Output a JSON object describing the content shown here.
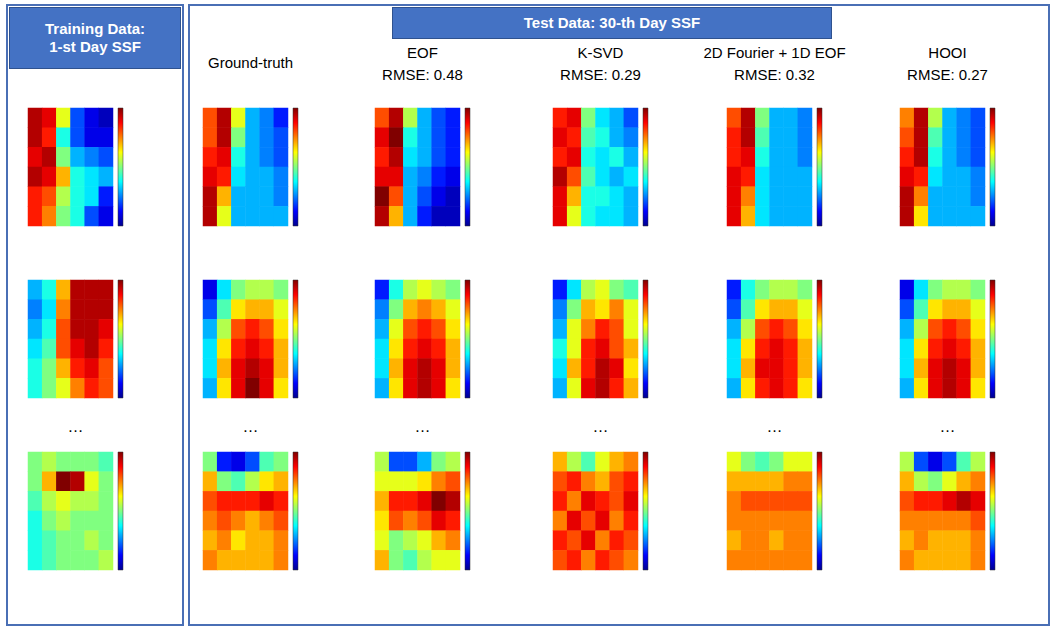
{
  "chart_data": {
    "type": "heatmap",
    "training_title": "Training Data: 1-st Day SSF",
    "test_title": "Test Data:  30-th Day SSF",
    "ellipsis": "…",
    "colorbar_range": [
      0,
      1
    ],
    "columns": [
      {
        "title": "Ground-truth"
      },
      {
        "title": "EOF",
        "rmse": {
          "value": 0.48,
          "label": "RMSE: 0.48"
        }
      },
      {
        "title": "K-SVD",
        "rmse": {
          "value": 0.29,
          "label": "RMSE: 0.29"
        }
      },
      {
        "title": "2D Fourier + 1D EOF",
        "rmse": {
          "value": 0.32,
          "label": "RMSE: 0.32"
        }
      },
      {
        "title": "HOOI",
        "rmse": {
          "value": 0.27,
          "label": "RMSE: 0.27"
        }
      }
    ],
    "training": [
      [
        [
          0.95,
          0.9,
          0.6,
          0.2,
          0.1,
          0.05
        ],
        [
          0.95,
          0.85,
          0.4,
          0.2,
          0.1,
          0.1
        ],
        [
          0.9,
          0.95,
          0.5,
          0.3,
          0.25,
          0.2
        ],
        [
          0.95,
          0.9,
          0.7,
          0.4,
          0.35,
          0.3
        ],
        [
          0.85,
          0.8,
          0.55,
          0.4,
          0.35,
          0.15
        ],
        [
          0.85,
          0.75,
          0.5,
          0.4,
          0.2,
          0.1
        ]
      ],
      [
        [
          0.3,
          0.4,
          0.7,
          0.95,
          0.95,
          0.95
        ],
        [
          0.25,
          0.35,
          0.75,
          0.95,
          0.95,
          0.95
        ],
        [
          0.3,
          0.4,
          0.8,
          0.95,
          0.95,
          0.9
        ],
        [
          0.35,
          0.45,
          0.8,
          0.9,
          0.95,
          0.85
        ],
        [
          0.4,
          0.5,
          0.7,
          0.85,
          0.9,
          0.8
        ],
        [
          0.4,
          0.5,
          0.6,
          0.75,
          0.85,
          0.8
        ]
      ],
      [
        [
          0.5,
          0.55,
          0.5,
          0.5,
          0.5,
          0.45
        ],
        [
          0.5,
          0.7,
          1.0,
          0.95,
          0.6,
          0.5
        ],
        [
          0.45,
          0.55,
          0.6,
          0.55,
          0.55,
          0.5
        ],
        [
          0.4,
          0.5,
          0.55,
          0.5,
          0.5,
          0.5
        ],
        [
          0.4,
          0.45,
          0.5,
          0.5,
          0.55,
          0.5
        ],
        [
          0.4,
          0.45,
          0.5,
          0.5,
          0.5,
          0.55
        ]
      ]
    ],
    "test": [
      [
        [
          [
            0.8,
            0.95,
            0.6,
            0.3,
            0.25,
            0.15
          ],
          [
            0.8,
            0.95,
            0.5,
            0.3,
            0.25,
            0.2
          ],
          [
            0.85,
            0.9,
            0.4,
            0.3,
            0.25,
            0.2
          ],
          [
            0.9,
            0.85,
            0.35,
            0.3,
            0.3,
            0.25
          ],
          [
            0.95,
            0.7,
            0.3,
            0.3,
            0.3,
            0.25
          ],
          [
            0.95,
            0.6,
            0.3,
            0.3,
            0.3,
            0.3
          ]
        ],
        [
          [
            0.8,
            0.95,
            0.55,
            0.3,
            0.2,
            0.15
          ],
          [
            0.9,
            1.0,
            0.4,
            0.3,
            0.2,
            0.15
          ],
          [
            0.85,
            0.95,
            0.35,
            0.3,
            0.2,
            0.15
          ],
          [
            0.9,
            0.9,
            0.3,
            0.25,
            0.15,
            0.1
          ],
          [
            1.0,
            0.8,
            0.3,
            0.2,
            0.1,
            0.05
          ],
          [
            0.95,
            0.7,
            0.3,
            0.15,
            0.05,
            0.05
          ]
        ],
        [
          [
            0.85,
            0.9,
            0.5,
            0.35,
            0.3,
            0.2
          ],
          [
            0.9,
            0.85,
            0.45,
            0.4,
            0.3,
            0.25
          ],
          [
            0.85,
            0.9,
            0.4,
            0.35,
            0.4,
            0.3
          ],
          [
            0.95,
            0.8,
            0.45,
            0.35,
            0.3,
            0.35
          ],
          [
            0.9,
            0.7,
            0.4,
            0.4,
            0.35,
            0.3
          ],
          [
            0.9,
            0.6,
            0.4,
            0.35,
            0.35,
            0.3
          ]
        ],
        [
          [
            0.8,
            0.95,
            0.5,
            0.3,
            0.3,
            0.25
          ],
          [
            0.85,
            0.95,
            0.45,
            0.3,
            0.3,
            0.25
          ],
          [
            0.85,
            0.9,
            0.4,
            0.3,
            0.3,
            0.25
          ],
          [
            0.9,
            0.85,
            0.35,
            0.3,
            0.3,
            0.3
          ],
          [
            0.9,
            0.75,
            0.35,
            0.3,
            0.3,
            0.3
          ],
          [
            0.9,
            0.7,
            0.35,
            0.3,
            0.3,
            0.3
          ]
        ],
        [
          [
            0.75,
            0.95,
            0.55,
            0.3,
            0.25,
            0.2
          ],
          [
            0.8,
            0.95,
            0.45,
            0.3,
            0.25,
            0.2
          ],
          [
            0.85,
            0.95,
            0.4,
            0.3,
            0.25,
            0.2
          ],
          [
            0.9,
            0.85,
            0.35,
            0.3,
            0.3,
            0.25
          ],
          [
            0.95,
            0.75,
            0.3,
            0.3,
            0.3,
            0.25
          ],
          [
            0.95,
            0.65,
            0.3,
            0.3,
            0.3,
            0.3
          ]
        ]
      ],
      [
        [
          [
            0.1,
            0.35,
            0.5,
            0.55,
            0.55,
            0.5
          ],
          [
            0.2,
            0.45,
            0.65,
            0.7,
            0.7,
            0.6
          ],
          [
            0.3,
            0.55,
            0.8,
            0.85,
            0.8,
            0.65
          ],
          [
            0.35,
            0.65,
            0.85,
            0.9,
            0.85,
            0.7
          ],
          [
            0.35,
            0.7,
            0.9,
            0.95,
            0.9,
            0.7
          ],
          [
            0.3,
            0.65,
            0.9,
            1.0,
            0.9,
            0.65
          ]
        ],
        [
          [
            0.15,
            0.4,
            0.55,
            0.6,
            0.55,
            0.5
          ],
          [
            0.25,
            0.5,
            0.7,
            0.75,
            0.7,
            0.6
          ],
          [
            0.3,
            0.6,
            0.8,
            0.85,
            0.8,
            0.65
          ],
          [
            0.35,
            0.65,
            0.85,
            0.9,
            0.85,
            0.7
          ],
          [
            0.35,
            0.7,
            0.9,
            0.95,
            0.9,
            0.7
          ],
          [
            0.3,
            0.65,
            0.9,
            0.95,
            0.9,
            0.65
          ]
        ],
        [
          [
            0.15,
            0.35,
            0.55,
            0.6,
            0.5,
            0.45
          ],
          [
            0.25,
            0.5,
            0.7,
            0.65,
            0.75,
            0.6
          ],
          [
            0.3,
            0.6,
            0.75,
            0.85,
            0.8,
            0.6
          ],
          [
            0.4,
            0.6,
            0.85,
            0.9,
            0.8,
            0.7
          ],
          [
            0.35,
            0.7,
            0.85,
            0.95,
            0.9,
            0.65
          ],
          [
            0.3,
            0.6,
            0.9,
            0.95,
            0.85,
            0.7
          ]
        ],
        [
          [
            0.15,
            0.4,
            0.5,
            0.55,
            0.55,
            0.5
          ],
          [
            0.2,
            0.45,
            0.65,
            0.7,
            0.7,
            0.6
          ],
          [
            0.3,
            0.55,
            0.8,
            0.85,
            0.8,
            0.65
          ],
          [
            0.35,
            0.65,
            0.85,
            0.9,
            0.85,
            0.7
          ],
          [
            0.35,
            0.7,
            0.9,
            0.9,
            0.85,
            0.7
          ],
          [
            0.3,
            0.65,
            0.85,
            0.9,
            0.85,
            0.65
          ]
        ],
        [
          [
            0.1,
            0.35,
            0.5,
            0.55,
            0.55,
            0.5
          ],
          [
            0.2,
            0.45,
            0.65,
            0.7,
            0.7,
            0.6
          ],
          [
            0.3,
            0.55,
            0.8,
            0.85,
            0.8,
            0.65
          ],
          [
            0.35,
            0.65,
            0.85,
            0.9,
            0.85,
            0.7
          ],
          [
            0.35,
            0.7,
            0.9,
            0.95,
            0.9,
            0.7
          ],
          [
            0.3,
            0.65,
            0.9,
            0.95,
            0.9,
            0.65
          ]
        ]
      ],
      [
        [
          [
            0.5,
            0.15,
            0.1,
            0.2,
            0.45,
            0.5
          ],
          [
            0.7,
            0.5,
            0.45,
            0.55,
            0.65,
            0.7
          ],
          [
            0.8,
            0.85,
            0.85,
            0.85,
            0.9,
            0.85
          ],
          [
            0.75,
            0.8,
            0.75,
            0.7,
            0.75,
            0.8
          ],
          [
            0.7,
            0.75,
            0.65,
            0.7,
            0.7,
            0.75
          ],
          [
            0.75,
            0.7,
            0.7,
            0.7,
            0.7,
            0.75
          ]
        ],
        [
          [
            0.55,
            0.2,
            0.2,
            0.3,
            0.5,
            0.55
          ],
          [
            0.6,
            0.6,
            0.6,
            0.65,
            0.75,
            0.8
          ],
          [
            0.7,
            0.85,
            0.85,
            0.9,
            1.0,
            0.95
          ],
          [
            0.65,
            0.8,
            0.75,
            0.8,
            0.9,
            0.85
          ],
          [
            0.6,
            0.5,
            0.55,
            0.6,
            0.7,
            0.75
          ],
          [
            0.7,
            0.5,
            0.45,
            0.55,
            0.6,
            0.6
          ]
        ],
        [
          [
            0.7,
            0.55,
            0.45,
            0.6,
            0.7,
            0.75
          ],
          [
            0.8,
            0.85,
            0.75,
            0.7,
            0.8,
            0.85
          ],
          [
            0.85,
            0.75,
            0.9,
            0.85,
            0.8,
            0.9
          ],
          [
            0.75,
            0.9,
            0.8,
            0.9,
            0.75,
            0.85
          ],
          [
            0.85,
            0.8,
            0.9,
            0.75,
            0.85,
            0.8
          ],
          [
            0.8,
            0.85,
            0.75,
            0.85,
            0.8,
            0.75
          ]
        ],
        [
          [
            0.6,
            0.5,
            0.45,
            0.5,
            0.6,
            0.6
          ],
          [
            0.7,
            0.7,
            0.7,
            0.7,
            0.75,
            0.75
          ],
          [
            0.75,
            0.8,
            0.8,
            0.8,
            0.8,
            0.8
          ],
          [
            0.75,
            0.75,
            0.75,
            0.75,
            0.75,
            0.75
          ],
          [
            0.7,
            0.75,
            0.75,
            0.7,
            0.75,
            0.75
          ],
          [
            0.75,
            0.75,
            0.75,
            0.75,
            0.75,
            0.75
          ]
        ],
        [
          [
            0.55,
            0.2,
            0.1,
            0.2,
            0.45,
            0.55
          ],
          [
            0.7,
            0.55,
            0.5,
            0.6,
            0.7,
            0.75
          ],
          [
            0.8,
            0.85,
            0.85,
            0.9,
            0.95,
            0.9
          ],
          [
            0.75,
            0.75,
            0.75,
            0.75,
            0.75,
            0.8
          ],
          [
            0.7,
            0.75,
            0.7,
            0.7,
            0.7,
            0.75
          ],
          [
            0.75,
            0.7,
            0.7,
            0.7,
            0.7,
            0.75
          ]
        ]
      ]
    ]
  }
}
